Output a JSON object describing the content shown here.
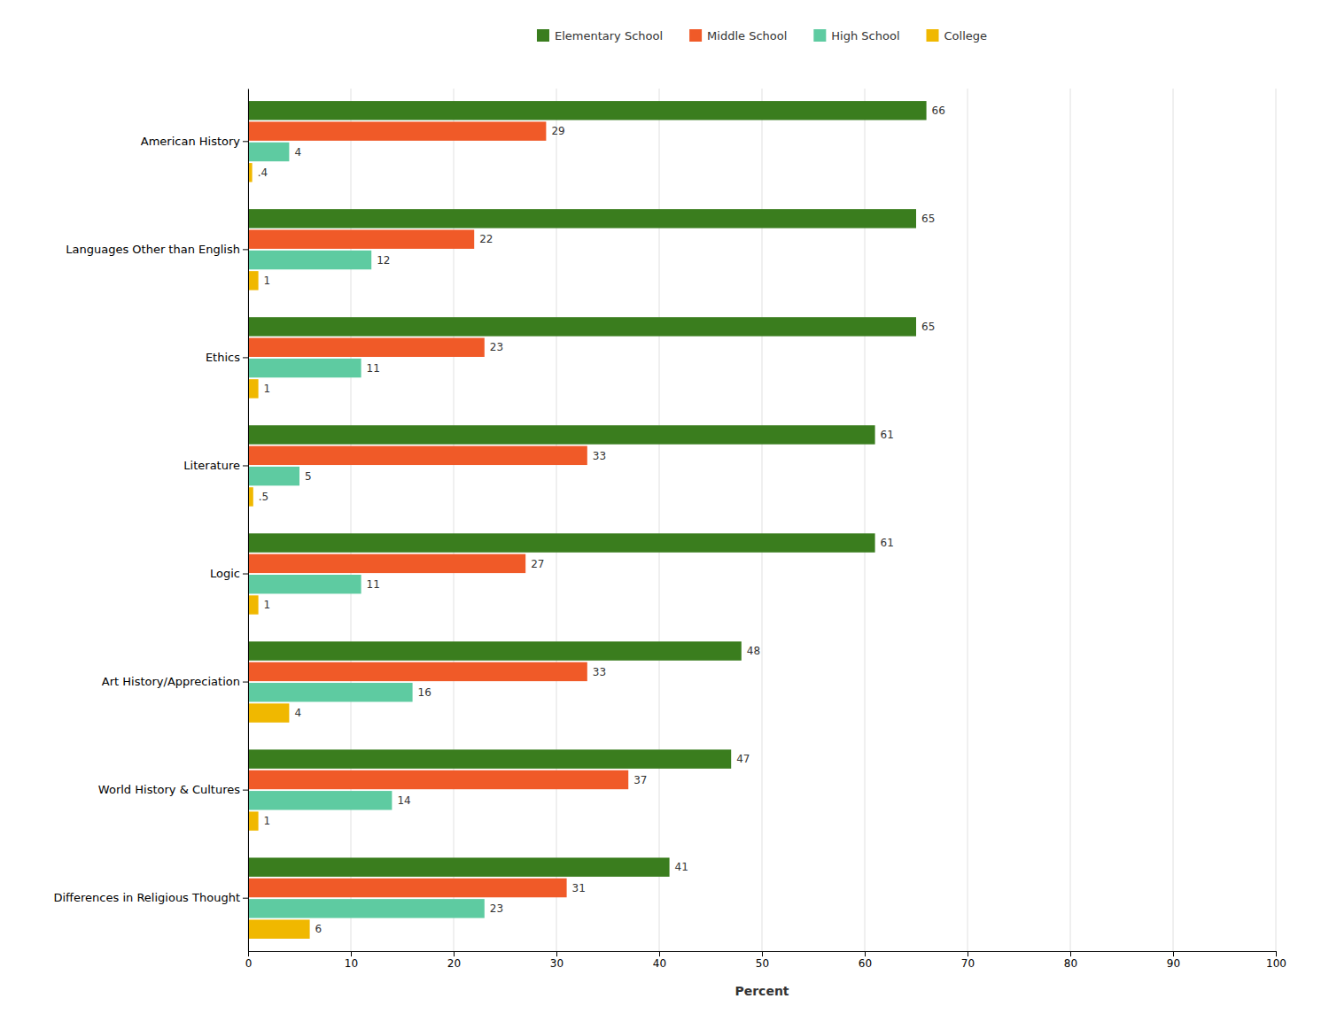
{
  "chart_data": {
    "type": "bar",
    "orientation": "horizontal",
    "categories": [
      "American History",
      "Languages Other than English",
      "Ethics",
      "Literature",
      "Logic",
      "Art History/Appreciation",
      "World History & Cultures",
      "Differences in Religious Thought"
    ],
    "series": [
      {
        "name": "Elementary School",
        "color": "#3a7d1e",
        "values": [
          66,
          65,
          65,
          61,
          61,
          48,
          47,
          41
        ]
      },
      {
        "name": "Middle School",
        "color": "#f05a28",
        "values": [
          29,
          22,
          23,
          33,
          27,
          33,
          37,
          31
        ]
      },
      {
        "name": "High School",
        "color": "#5ecba1",
        "values": [
          4,
          12,
          11,
          5,
          11,
          16,
          14,
          23
        ]
      },
      {
        "name": "College",
        "color": "#f0b800",
        "values": [
          0.4,
          1,
          1,
          0.5,
          1,
          4,
          1,
          6
        ],
        "value_labels": [
          ".4",
          "1",
          "1",
          ".5",
          "1",
          "4",
          "1",
          "6"
        ]
      }
    ],
    "xlabel": "Percent",
    "xlim": [
      0,
      100
    ],
    "xticks": [
      0,
      10,
      20,
      30,
      40,
      50,
      60,
      70,
      80,
      90,
      100
    ],
    "grid": true,
    "legend": "top",
    "data_labels": true
  }
}
